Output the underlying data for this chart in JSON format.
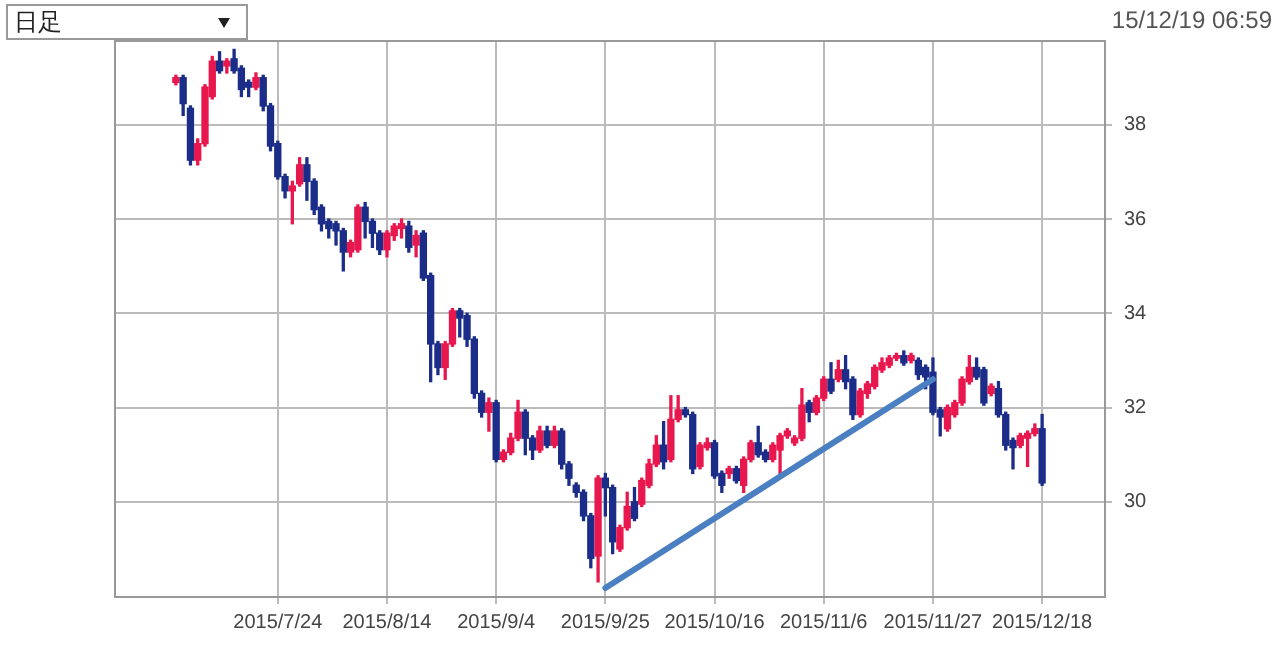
{
  "chart_data": {
    "type": "candlestick",
    "annotations": [
      "日足",
      "15/12/19 06:59"
    ],
    "categories": [
      null,
      null,
      null,
      null,
      null,
      null,
      null,
      null,
      null,
      null,
      null,
      null,
      null,
      null,
      null,
      null,
      null,
      null,
      null,
      null,
      null,
      null,
      "2015/7/24",
      null,
      null,
      null,
      null,
      null,
      null,
      null,
      null,
      null,
      null,
      null,
      null,
      null,
      null,
      "2015/8/14",
      null,
      null,
      null,
      null,
      null,
      null,
      null,
      null,
      null,
      null,
      null,
      null,
      null,
      null,
      "2015/9/4",
      null,
      null,
      null,
      null,
      null,
      null,
      null,
      null,
      null,
      null,
      null,
      null,
      null,
      null,
      "2015/9/25",
      null,
      null,
      null,
      null,
      null,
      null,
      null,
      null,
      null,
      null,
      null,
      null,
      null,
      null,
      "2015/10/16",
      null,
      null,
      null,
      null,
      null,
      null,
      null,
      null,
      null,
      null,
      null,
      null,
      null,
      null,
      "2015/11/6",
      null,
      null,
      null,
      null,
      null,
      null,
      null,
      null,
      null,
      null,
      null,
      null,
      null,
      null,
      "2015/11/27",
      null,
      null,
      null,
      null,
      null,
      null,
      null,
      null,
      null,
      null,
      null,
      null,
      null,
      null,
      "2015/12/18",
      null,
      null,
      null,
      null,
      null,
      null,
      null,
      null
    ],
    "ohlc": [
      null,
      null,
      null,
      null,
      null,
      null,
      null,
      null,
      [
        38.9,
        39.05,
        38.85,
        39.0
      ],
      [
        39.0,
        39.05,
        38.2,
        38.45
      ],
      [
        38.35,
        38.4,
        37.15,
        37.25
      ],
      [
        37.25,
        37.7,
        37.15,
        37.6
      ],
      [
        37.6,
        38.85,
        37.55,
        38.8
      ],
      [
        38.6,
        39.45,
        38.55,
        39.35
      ],
      [
        39.35,
        39.55,
        39.1,
        39.15
      ],
      [
        39.25,
        39.4,
        39.1,
        39.35
      ],
      [
        39.4,
        39.6,
        39.1,
        39.15
      ],
      [
        39.2,
        39.25,
        38.6,
        38.75
      ],
      [
        38.9,
        38.95,
        38.6,
        38.8
      ],
      [
        38.8,
        39.1,
        38.75,
        39.0
      ],
      [
        39.0,
        39.05,
        38.3,
        38.4
      ],
      [
        38.4,
        38.45,
        37.45,
        37.55
      ],
      [
        37.6,
        37.65,
        36.85,
        36.9
      ],
      [
        36.9,
        36.95,
        36.45,
        36.6
      ],
      [
        36.6,
        36.8,
        35.9,
        36.7
      ],
      [
        36.75,
        37.3,
        36.7,
        37.15
      ],
      [
        37.15,
        37.3,
        36.4,
        36.8
      ],
      [
        36.8,
        36.85,
        36.1,
        36.2
      ],
      [
        36.25,
        36.3,
        35.75,
        35.9
      ],
      [
        35.95,
        36.0,
        35.6,
        35.8
      ],
      [
        35.9,
        35.95,
        35.45,
        35.75
      ],
      [
        35.75,
        35.8,
        34.9,
        35.3
      ],
      [
        35.3,
        35.55,
        35.2,
        35.5
      ],
      [
        35.35,
        36.3,
        35.3,
        36.25
      ],
      [
        36.25,
        36.35,
        35.6,
        35.95
      ],
      [
        35.95,
        36.0,
        35.4,
        35.7
      ],
      [
        35.7,
        35.75,
        35.25,
        35.35
      ],
      [
        35.35,
        35.75,
        35.2,
        35.7
      ],
      [
        35.65,
        35.9,
        35.55,
        35.85
      ],
      [
        35.8,
        36.0,
        35.6,
        35.9
      ],
      [
        35.85,
        35.95,
        35.3,
        35.4
      ],
      [
        35.45,
        35.75,
        35.2,
        35.65
      ],
      [
        35.7,
        35.75,
        34.7,
        34.75
      ],
      [
        34.8,
        34.85,
        32.55,
        33.35
      ],
      [
        33.35,
        33.4,
        32.7,
        32.85
      ],
      [
        32.85,
        33.4,
        32.6,
        33.35
      ],
      [
        33.35,
        34.1,
        33.3,
        34.05
      ],
      [
        34.05,
        34.1,
        33.5,
        33.9
      ],
      [
        33.95,
        34.0,
        33.3,
        33.45
      ],
      [
        33.45,
        33.5,
        32.2,
        32.3
      ],
      [
        32.3,
        32.35,
        31.8,
        31.9
      ],
      [
        31.9,
        32.2,
        31.5,
        32.1
      ],
      [
        32.1,
        32.15,
        30.85,
        30.9
      ],
      [
        30.9,
        31.1,
        30.85,
        31.05
      ],
      [
        31.05,
        31.45,
        31.0,
        31.35
      ],
      [
        31.35,
        32.15,
        31.3,
        31.9
      ],
      [
        31.9,
        31.95,
        31.0,
        31.35
      ],
      [
        31.35,
        31.4,
        30.9,
        31.1
      ],
      [
        31.1,
        31.6,
        31.05,
        31.5
      ],
      [
        31.5,
        31.6,
        31.15,
        31.2
      ],
      [
        31.2,
        31.6,
        31.15,
        31.5
      ],
      [
        31.5,
        31.55,
        30.7,
        30.8
      ],
      [
        30.8,
        30.85,
        30.35,
        30.5
      ],
      [
        30.35,
        30.4,
        30.1,
        30.2
      ],
      [
        30.2,
        30.25,
        29.6,
        29.7
      ],
      [
        29.7,
        29.75,
        28.6,
        28.8
      ],
      [
        28.85,
        30.55,
        28.3,
        30.5
      ],
      [
        30.5,
        30.6,
        29.7,
        30.3
      ],
      [
        30.3,
        30.35,
        28.9,
        29.15
      ],
      [
        29.0,
        29.5,
        28.95,
        29.45
      ],
      [
        29.45,
        30.2,
        29.4,
        29.9
      ],
      [
        30.0,
        30.3,
        29.6,
        29.65
      ],
      [
        29.95,
        30.5,
        29.9,
        30.45
      ],
      [
        30.35,
        30.9,
        30.3,
        30.8
      ],
      [
        30.8,
        31.4,
        30.75,
        31.2
      ],
      [
        31.2,
        31.7,
        30.7,
        30.85
      ],
      [
        30.9,
        32.25,
        30.85,
        31.75
      ],
      [
        31.75,
        32.25,
        31.7,
        31.95
      ],
      [
        31.95,
        32.0,
        31.8,
        31.85
      ],
      [
        31.85,
        31.9,
        30.6,
        30.7
      ],
      [
        30.75,
        31.25,
        30.7,
        31.2
      ],
      [
        31.15,
        31.35,
        31.1,
        31.25
      ],
      [
        31.25,
        31.3,
        30.5,
        30.55
      ],
      [
        30.6,
        30.65,
        30.2,
        30.35
      ],
      [
        30.6,
        30.75,
        30.5,
        30.7
      ],
      [
        30.7,
        30.75,
        30.4,
        30.45
      ],
      [
        30.35,
        30.95,
        30.2,
        30.9
      ],
      [
        30.9,
        31.3,
        30.85,
        31.25
      ],
      [
        31.25,
        31.6,
        30.95,
        31.0
      ],
      [
        31.05,
        31.1,
        30.85,
        30.9
      ],
      [
        30.9,
        31.25,
        30.85,
        31.2
      ],
      [
        31.1,
        31.45,
        30.6,
        31.4
      ],
      [
        31.4,
        31.55,
        31.35,
        31.5
      ],
      [
        31.25,
        31.4,
        31.2,
        31.35
      ],
      [
        31.35,
        32.4,
        31.3,
        32.05
      ],
      [
        32.1,
        32.15,
        31.7,
        31.9
      ],
      [
        31.9,
        32.25,
        31.85,
        32.2
      ],
      [
        32.2,
        32.65,
        32.15,
        32.6
      ],
      [
        32.6,
        32.95,
        32.3,
        32.35
      ],
      [
        32.6,
        33.0,
        32.55,
        32.8
      ],
      [
        32.8,
        33.1,
        32.4,
        32.55
      ],
      [
        32.6,
        32.65,
        31.75,
        31.85
      ],
      [
        31.85,
        32.4,
        31.8,
        32.35
      ],
      [
        32.3,
        32.55,
        32.2,
        32.5
      ],
      [
        32.45,
        32.9,
        32.4,
        32.85
      ],
      [
        32.8,
        33.05,
        32.75,
        32.95
      ],
      [
        32.9,
        33.1,
        32.85,
        33.05
      ],
      [
        33.05,
        33.15,
        33.0,
        33.1
      ],
      [
        33.1,
        33.2,
        32.9,
        32.95
      ],
      [
        33.0,
        33.15,
        32.95,
        33.1
      ],
      [
        33.0,
        33.05,
        32.6,
        32.7
      ],
      [
        32.85,
        32.9,
        32.4,
        32.65
      ],
      [
        32.75,
        33.05,
        31.85,
        31.9
      ],
      [
        31.95,
        32.0,
        31.4,
        31.8
      ],
      [
        31.55,
        32.05,
        31.5,
        32.0
      ],
      [
        31.85,
        32.15,
        31.8,
        32.1
      ],
      [
        32.1,
        32.65,
        32.05,
        32.6
      ],
      [
        32.55,
        33.1,
        32.5,
        32.85
      ],
      [
        32.85,
        33.05,
        32.6,
        32.65
      ],
      [
        32.8,
        32.85,
        32.05,
        32.1
      ],
      [
        32.3,
        32.5,
        32.25,
        32.45
      ],
      [
        32.4,
        32.55,
        31.8,
        31.85
      ],
      [
        31.85,
        31.9,
        31.1,
        31.2
      ],
      [
        31.3,
        31.35,
        30.7,
        31.15
      ],
      [
        31.2,
        31.45,
        31.15,
        31.4
      ],
      [
        31.35,
        31.5,
        30.75,
        31.45
      ],
      [
        31.45,
        31.65,
        31.4,
        31.55
      ],
      [
        31.55,
        31.85,
        30.35,
        30.4
      ],
      null,
      null,
      null,
      null,
      null,
      null,
      null,
      null
    ],
    "colors": [
      null,
      null,
      null,
      null,
      null,
      null,
      null,
      null,
      "#e8174d",
      "#1b2d88",
      "#1b2d88",
      "#e8174d",
      "#e8174d",
      "#e8174d",
      "#1b2d88",
      "#e8174d",
      "#1b2d88",
      "#1b2d88",
      "#1b2d88",
      "#e8174d",
      "#1b2d88",
      "#1b2d88",
      "#1b2d88",
      "#1b2d88",
      "#e8174d",
      "#e8174d",
      "#1b2d88",
      "#1b2d88",
      "#1b2d88",
      "#1b2d88",
      "#1b2d88",
      "#1b2d88",
      "#e8174d",
      "#e8174d",
      "#1b2d88",
      "#1b2d88",
      "#1b2d88",
      "#e8174d",
      "#e8174d",
      "#e8174d",
      "#1b2d88",
      "#e8174d",
      "#1b2d88",
      "#1b2d88",
      "#1b2d88",
      "#e8174d",
      "#e8174d",
      "#1b2d88",
      "#1b2d88",
      "#1b2d88",
      "#1b2d88",
      "#e8174d",
      "#1b2d88",
      "#e8174d",
      "#e8174d",
      "#e8174d",
      "#1b2d88",
      "#1b2d88",
      "#e8174d",
      "#1b2d88",
      "#e8174d",
      "#1b2d88",
      "#1b2d88",
      "#1b2d88",
      "#1b2d88",
      "#1b2d88",
      "#e8174d",
      "#1b2d88",
      "#1b2d88",
      "#e8174d",
      "#e8174d",
      "#1b2d88",
      "#e8174d",
      "#e8174d",
      "#e8174d",
      "#1b2d88",
      "#e8174d",
      "#e8174d",
      "#1b2d88",
      "#1b2d88",
      "#e8174d",
      "#e8174d",
      "#1b2d88",
      "#1b2d88",
      "#e8174d",
      "#1b2d88",
      "#e8174d",
      "#e8174d",
      "#1b2d88",
      "#1b2d88",
      "#e8174d",
      "#e8174d",
      "#e8174d",
      "#e8174d",
      "#e8174d",
      "#1b2d88",
      "#e8174d",
      "#e8174d",
      "#1b2d88",
      "#e8174d",
      "#1b2d88",
      "#1b2d88",
      "#e8174d",
      "#e8174d",
      "#e8174d",
      "#e8174d",
      "#e8174d",
      "#e8174d",
      "#1b2d88",
      "#e8174d",
      "#1b2d88",
      "#1b2d88",
      "#1b2d88",
      "#1b2d88",
      "#e8174d",
      "#e8174d",
      "#e8174d",
      "#e8174d",
      "#1b2d88",
      "#1b2d88",
      "#e8174d",
      "#1b2d88",
      "#1b2d88",
      "#1b2d88",
      "#e8174d",
      "#e8174d",
      "#e8174d",
      "#1b2d88",
      null,
      null,
      null,
      null,
      null,
      null,
      null,
      null
    ],
    "series": [
      {
        "type": "line",
        "color": "#4a7fc1",
        "x": [
          "2015/9/25",
          "2015/11/27"
        ],
        "values": [
          28.17,
          32.6
        ]
      }
    ],
    "ylim": [
      28,
      39.8
    ],
    "yticks": [
      30,
      32,
      34,
      36,
      38
    ],
    "grid": true,
    "legend": false
  }
}
